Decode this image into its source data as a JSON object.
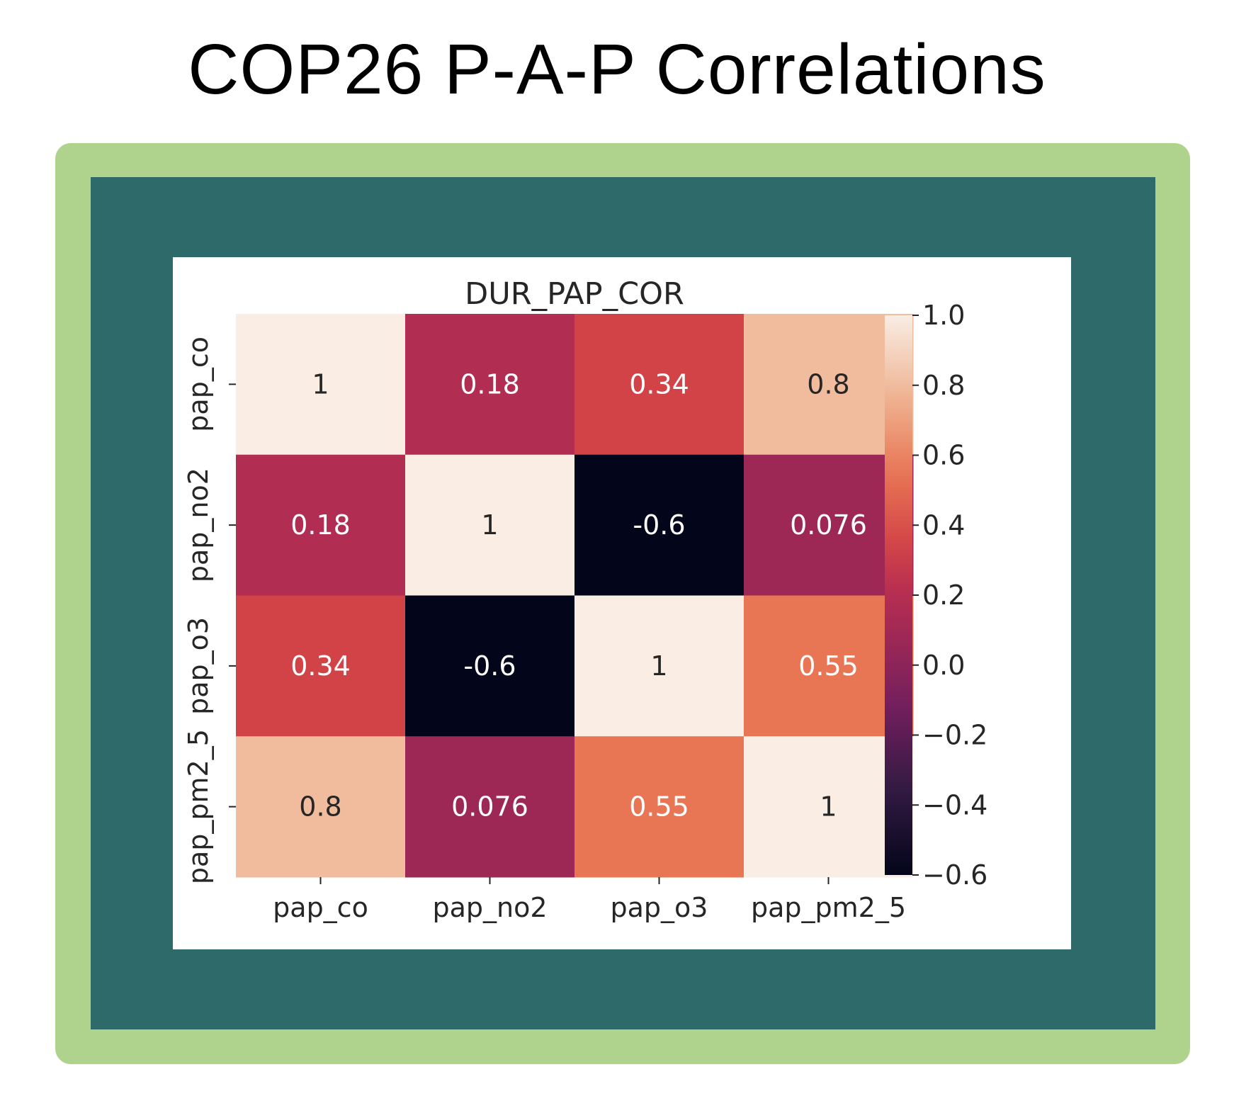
{
  "page": {
    "title": "COP26 P-A-P Correlations",
    "frame_outer_color": "#afd28c",
    "frame_inner_color": "#2f6a6a"
  },
  "chart_data": {
    "type": "heatmap",
    "title": "DUR_PAP_COR",
    "xlabel": "",
    "ylabel": "",
    "x_categories": [
      "pap_co",
      "pap_no2",
      "pap_o3",
      "pap_pm2_5"
    ],
    "y_categories": [
      "pap_co",
      "pap_no2",
      "pap_o3",
      "pap_pm2_5"
    ],
    "values": [
      [
        1,
        0.18,
        0.34,
        0.8
      ],
      [
        0.18,
        1,
        -0.6,
        0.076
      ],
      [
        0.34,
        -0.6,
        1,
        0.55
      ],
      [
        0.8,
        0.076,
        0.55,
        1
      ]
    ],
    "cell_labels": [
      [
        "1",
        "0.18",
        "0.34",
        "0.8"
      ],
      [
        "0.18",
        "1",
        "-0.6",
        "0.076"
      ],
      [
        "0.34",
        "-0.6",
        "1",
        "0.55"
      ],
      [
        "0.8",
        "0.076",
        "0.55",
        "1"
      ]
    ],
    "annotations": true,
    "colormap": "rocket",
    "colorbar": {
      "vmin": -0.6,
      "vmax": 1.0,
      "ticks": [
        1.0,
        0.8,
        0.6,
        0.4,
        0.2,
        0.0,
        -0.2,
        -0.4,
        -0.6
      ],
      "tick_labels": [
        "1.0",
        "0.8",
        "0.6",
        "0.4",
        "0.2",
        "0.0",
        "−0.2",
        "−0.4",
        "−0.6"
      ],
      "placement": "right"
    },
    "grid": false
  }
}
